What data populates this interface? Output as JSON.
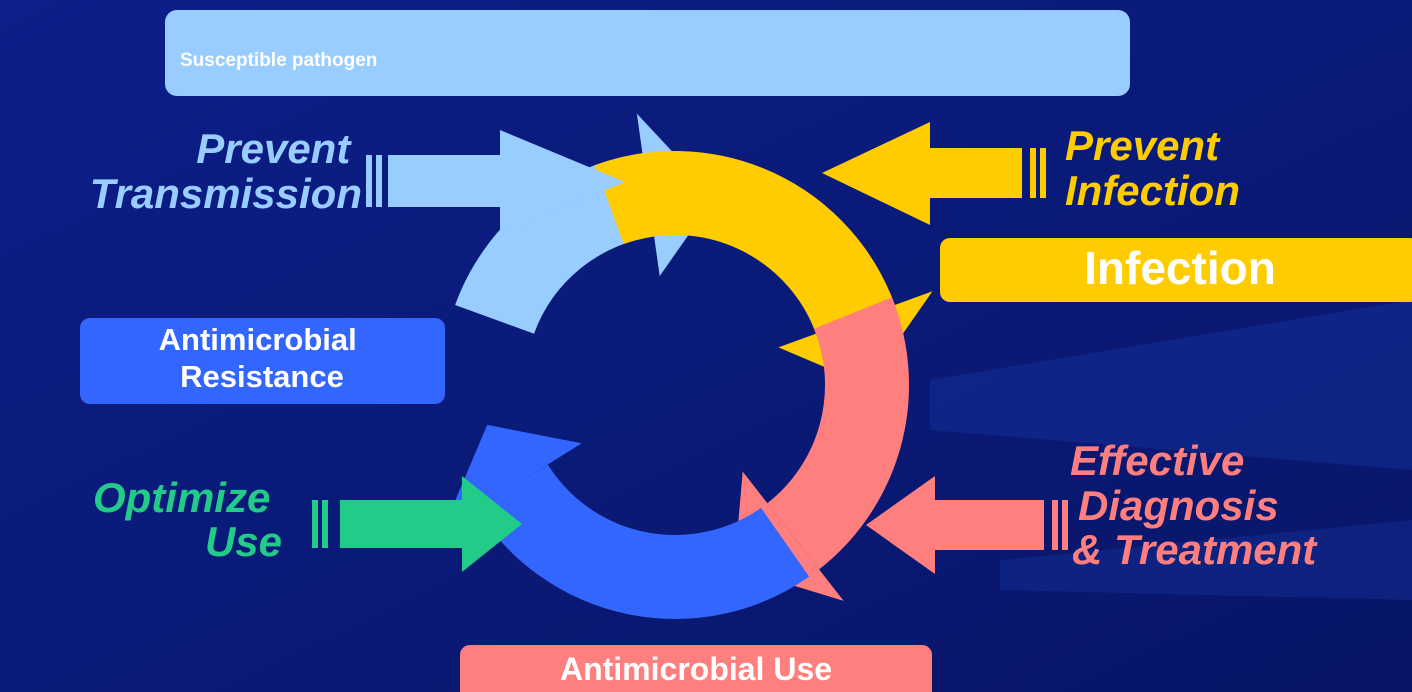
{
  "nodes": [
    {
      "label": "Susceptible pathogen"
    },
    {
      "label": "Infection"
    },
    {
      "label": "Antimicrobial Use"
    },
    {
      "lines": [
        "Antimicrobial",
        "Resistance"
      ]
    }
  ],
  "interventions": [
    {
      "lines": [
        "Prevent",
        "Transmission"
      ]
    },
    {
      "lines": [
        "Prevent",
        "Infection"
      ]
    },
    {
      "lines": [
        "Effective",
        "Diagnosis",
        "& Treatment"
      ]
    },
    {
      "lines": [
        "Optimize",
        "Use"
      ]
    }
  ]
}
